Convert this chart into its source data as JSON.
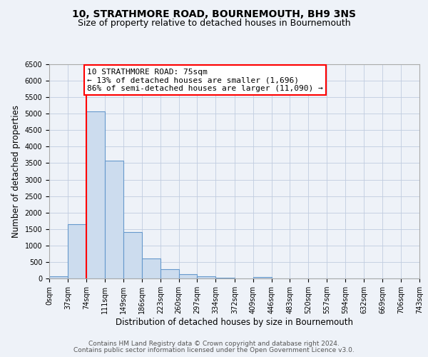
{
  "title": "10, STRATHMORE ROAD, BOURNEMOUTH, BH9 3NS",
  "subtitle": "Size of property relative to detached houses in Bournemouth",
  "xlabel": "Distribution of detached houses by size in Bournemouth",
  "ylabel": "Number of detached properties",
  "bin_edges": [
    0,
    37,
    74,
    111,
    149,
    186,
    223,
    260,
    297,
    334,
    372,
    409,
    446,
    483,
    520,
    557,
    594,
    632,
    669,
    706,
    743
  ],
  "bin_labels": [
    "0sqm",
    "37sqm",
    "74sqm",
    "111sqm",
    "149sqm",
    "186sqm",
    "223sqm",
    "260sqm",
    "297sqm",
    "334sqm",
    "372sqm",
    "409sqm",
    "446sqm",
    "483sqm",
    "520sqm",
    "557sqm",
    "594sqm",
    "632sqm",
    "669sqm",
    "706sqm",
    "743sqm"
  ],
  "counts": [
    70,
    1650,
    5080,
    3580,
    1400,
    610,
    290,
    140,
    55,
    15,
    5,
    50,
    0,
    0,
    0,
    0,
    0,
    0,
    0,
    0
  ],
  "bar_facecolor": "#ccdcee",
  "bar_edgecolor": "#6699cc",
  "property_line_x": 74,
  "property_line_color": "red",
  "annotation_line1": "10 STRATHMORE ROAD: 75sqm",
  "annotation_line2": "← 13% of detached houses are smaller (1,696)",
  "annotation_line3": "86% of semi-detached houses are larger (11,090) →",
  "annotation_box_facecolor": "white",
  "annotation_box_edgecolor": "red",
  "ylim": [
    0,
    6500
  ],
  "yticks": [
    0,
    500,
    1000,
    1500,
    2000,
    2500,
    3000,
    3500,
    4000,
    4500,
    5000,
    5500,
    6000,
    6500
  ],
  "grid_color": "#c0cce0",
  "footer_line1": "Contains HM Land Registry data © Crown copyright and database right 2024.",
  "footer_line2": "Contains public sector information licensed under the Open Government Licence v3.0.",
  "bg_color": "#eef2f8",
  "title_fontsize": 10,
  "subtitle_fontsize": 9,
  "annotation_fontsize": 8,
  "xlabel_fontsize": 8.5,
  "ylabel_fontsize": 8.5,
  "tick_fontsize": 7,
  "footer_fontsize": 6.5
}
